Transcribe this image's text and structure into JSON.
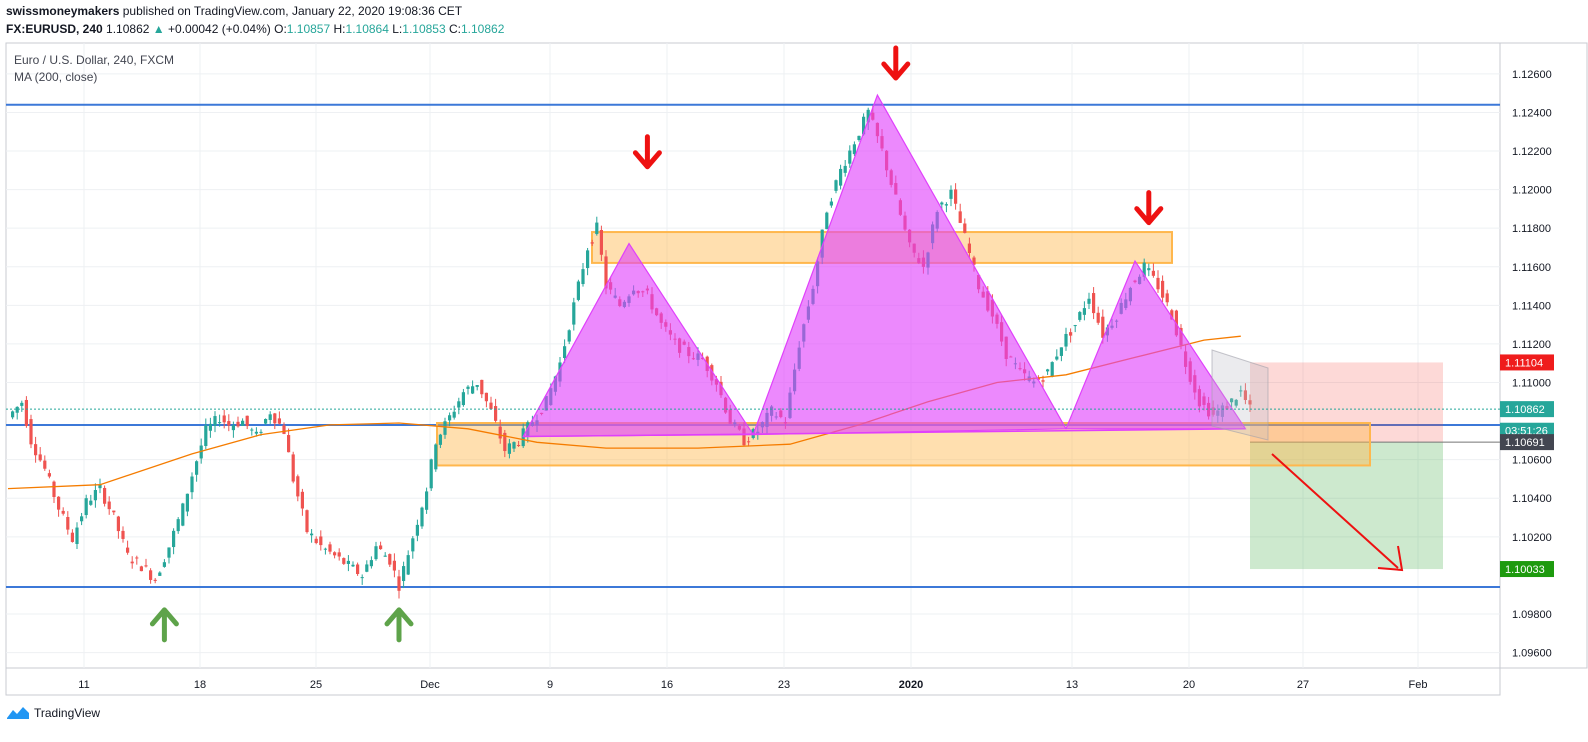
{
  "header": {
    "author": "swissmoneymakers",
    "published_text": "published on TradingView.com, January 22, 2020 19:08:36 CET",
    "symbol": "FX:EURUSD, 240",
    "last": "1.10862",
    "change": "+0.00042 (+0.04%)",
    "o_label": "O:",
    "o_value": "1.10857",
    "h_label": "H:",
    "h_value": "1.10864",
    "l_label": "L:",
    "l_value": "1.10853",
    "c_label": "C:",
    "c_value": "1.10862"
  },
  "legend": {
    "title": "Euro / U.S. Dollar, 240, FXCM",
    "indicator": "MA (200, close)"
  },
  "footer": {
    "brand": "TradingView"
  },
  "colors": {
    "up": "#26a69a",
    "down": "#ef5350",
    "ma": "#f57c00",
    "pattern": "#e040fb",
    "zone": "#ffb74d",
    "support": "#3c78d8",
    "arrow_red": "#ee1111",
    "arrow_green": "#5ea34a"
  },
  "chart_data": {
    "type": "candlestick",
    "instrument": "Euro / U.S. Dollar",
    "timeframe": "240",
    "x_tick_labels": [
      "11",
      "18",
      "25",
      "Dec",
      "9",
      "16",
      "23",
      "2020",
      "13",
      "20",
      "27",
      "Feb"
    ],
    "y_tick_labels": [
      "1.12600",
      "1.12400",
      "1.12200",
      "1.12000",
      "1.11800",
      "1.11600",
      "1.11400",
      "1.11200",
      "1.11000",
      "1.10600",
      "1.10400",
      "1.10200",
      "1.09800",
      "1.09600"
    ],
    "ylim": [
      1.0952,
      1.1276
    ],
    "price_labels": [
      {
        "text": "1.11104",
        "value": 1.11104,
        "color": "#ef1c1c"
      },
      {
        "text": "1.10862",
        "value": 1.10862,
        "color": "#26a69a"
      },
      {
        "text": "03:51:26",
        "value": 1.1075,
        "color": "#26a69a"
      },
      {
        "text": "1.10691",
        "value": 1.10691,
        "color": "#434651"
      },
      {
        "text": "1.10033",
        "value": 1.10033,
        "color": "#1d9a0e"
      }
    ],
    "horizontal_levels": [
      1.1244,
      1.1078,
      1.0994
    ],
    "zones": [
      {
        "from": 1.1162,
        "to": 1.1178
      },
      {
        "from": 1.1057,
        "to": 1.1079
      }
    ],
    "trade": {
      "entry": 1.10691,
      "stop": 1.11104,
      "target": 1.10033
    },
    "series_close_path": [
      [
        0,
        1.1082
      ],
      [
        3,
        1.109
      ],
      [
        5,
        1.107
      ],
      [
        8,
        1.1055
      ],
      [
        11,
        1.1035
      ],
      [
        14,
        1.1019
      ],
      [
        17,
        1.1038
      ],
      [
        20,
        1.1045
      ],
      [
        23,
        1.103
      ],
      [
        26,
        1.101
      ],
      [
        29,
        1.1005
      ],
      [
        32,
        1.0998
      ],
      [
        35,
        1.1015
      ],
      [
        38,
        1.1035
      ],
      [
        40,
        1.1052
      ],
      [
        43,
        1.1075
      ],
      [
        46,
        1.1082
      ],
      [
        48,
        1.1078
      ],
      [
        51,
        1.108
      ],
      [
        54,
        1.1072
      ],
      [
        57,
        1.1085
      ],
      [
        60,
        1.1075
      ],
      [
        62,
        1.105
      ],
      [
        65,
        1.1023
      ],
      [
        68,
        1.1015
      ],
      [
        71,
        1.101
      ],
      [
        74,
        1.1005
      ],
      [
        77,
        1.1
      ],
      [
        80,
        1.1015
      ],
      [
        83,
        1.1008
      ],
      [
        85,
        1.0995
      ],
      [
        88,
        1.102
      ],
      [
        91,
        1.1045
      ],
      [
        93,
        1.107
      ],
      [
        96,
        1.1082
      ],
      [
        99,
        1.1095
      ],
      [
        102,
        1.11
      ],
      [
        105,
        1.1085
      ],
      [
        108,
        1.1065
      ],
      [
        111,
        1.107
      ],
      [
        114,
        1.108
      ],
      [
        117,
        1.109
      ],
      [
        120,
        1.111
      ],
      [
        123,
        1.114
      ],
      [
        126,
        1.117
      ],
      [
        128,
        1.118
      ],
      [
        130,
        1.115
      ],
      [
        133,
        1.114
      ],
      [
        136,
        1.115
      ],
      [
        139,
        1.1145
      ],
      [
        142,
        1.113
      ],
      [
        145,
        1.112
      ],
      [
        148,
        1.1115
      ],
      [
        151,
        1.1112
      ],
      [
        154,
        1.11
      ],
      [
        157,
        1.108
      ],
      [
        160,
        1.107
      ],
      [
        163,
        1.1075
      ],
      [
        166,
        1.1085
      ],
      [
        169,
        1.108
      ],
      [
        172,
        1.112
      ],
      [
        175,
        1.115
      ],
      [
        178,
        1.119
      ],
      [
        181,
        1.121
      ],
      [
        184,
        1.1225
      ],
      [
        187,
        1.124
      ],
      [
        190,
        1.122
      ],
      [
        193,
        1.1195
      ],
      [
        196,
        1.117
      ],
      [
        199,
        1.116
      ],
      [
        202,
        1.119
      ],
      [
        205,
        1.1198
      ],
      [
        208,
        1.1175
      ],
      [
        211,
        1.115
      ],
      [
        214,
        1.1135
      ],
      [
        217,
        1.1115
      ],
      [
        220,
        1.1105
      ],
      [
        223,
        1.11
      ],
      [
        226,
        1.1105
      ],
      [
        229,
        1.112
      ],
      [
        232,
        1.113
      ],
      [
        235,
        1.1145
      ],
      [
        238,
        1.1125
      ],
      [
        241,
        1.1135
      ],
      [
        244,
        1.115
      ],
      [
        247,
        1.116
      ],
      [
        250,
        1.115
      ],
      [
        253,
        1.1135
      ],
      [
        256,
        1.111
      ],
      [
        259,
        1.109
      ],
      [
        262,
        1.1083
      ],
      [
        265,
        1.1088
      ],
      [
        268,
        1.1095
      ],
      [
        270,
        1.1086
      ]
    ],
    "ma_path": [
      [
        0,
        1.1045
      ],
      [
        20,
        1.1047
      ],
      [
        40,
        1.1063
      ],
      [
        55,
        1.1073
      ],
      [
        70,
        1.1078
      ],
      [
        85,
        1.1079
      ],
      [
        100,
        1.1076
      ],
      [
        115,
        1.1069
      ],
      [
        130,
        1.1066
      ],
      [
        150,
        1.1066
      ],
      [
        170,
        1.1068
      ],
      [
        185,
        1.1078
      ],
      [
        200,
        1.109
      ],
      [
        215,
        1.11
      ],
      [
        230,
        1.1104
      ],
      [
        245,
        1.1113
      ],
      [
        260,
        1.1122
      ],
      [
        268,
        1.1124
      ]
    ],
    "pattern_triangles": [
      [
        [
          112,
          1.1072
        ],
        [
          135,
          1.1172
        ],
        [
          162,
          1.1073
        ]
      ],
      [
        [
          162,
          1.1073
        ],
        [
          189,
          1.1249
        ],
        [
          230,
          1.1076
        ]
      ],
      [
        [
          230,
          1.1076
        ],
        [
          245,
          1.1163
        ],
        [
          269,
          1.1076
        ]
      ]
    ],
    "neckline": [
      [
        112,
        1.1072
      ],
      [
        269,
        1.1076
      ]
    ],
    "annotations": [
      {
        "type": "arrow-down",
        "at": [
          139,
          1.1216
        ]
      },
      {
        "type": "arrow-down",
        "at": [
          193,
          1.1262
        ]
      },
      {
        "type": "arrow-down",
        "at": [
          248,
          1.1187
        ]
      },
      {
        "type": "arrow-up",
        "at": [
          34,
          1.0978
        ]
      },
      {
        "type": "arrow-up",
        "at": [
          85,
          1.0978
        ]
      }
    ]
  }
}
